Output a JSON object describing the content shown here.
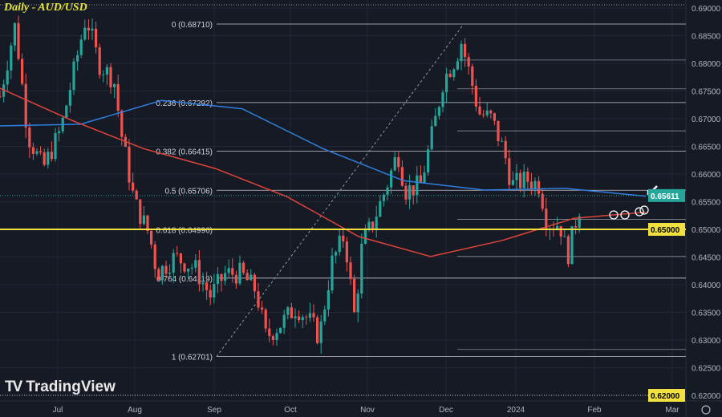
{
  "header": {
    "title": "Daily - AUD/USD"
  },
  "branding": {
    "logo_text": "TradingView",
    "logo_mark": "TV"
  },
  "settings_icon": "gear-icon",
  "colors": {
    "background": "#161a25",
    "up": "#26a69a",
    "down": "#ef5350",
    "ma_fast": "#2f7fe0",
    "ma_slow": "#e0443a",
    "level": "#f0e040",
    "current": "#26a69a"
  },
  "chart_data": {
    "type": "candlestick",
    "title": "Daily - AUD/USD",
    "ylim": [
      0.62,
      0.69
    ],
    "y_ticks": [
      "0.62000",
      "0.62500",
      "0.63000",
      "0.63500",
      "0.64000",
      "0.64500",
      "0.65000",
      "0.65500",
      "0.66000",
      "0.66500",
      "0.67000",
      "0.67500",
      "0.68000",
      "0.68500",
      "0.69000"
    ],
    "x_ticks": [
      "Jul",
      "Aug",
      "Sep",
      "Oct",
      "Nov",
      "Dec",
      "2024",
      "Feb",
      "Mar"
    ],
    "grid": true,
    "closes": [
      [
        "2023-06-09",
        0.674
      ],
      [
        "2023-06-13",
        0.6828
      ],
      [
        "2023-06-15",
        0.687
      ],
      [
        "2023-06-20",
        0.667
      ],
      [
        "2023-06-26",
        0.661
      ],
      [
        "2023-07-03",
        0.668
      ],
      [
        "2023-07-13",
        0.6885
      ],
      [
        "2023-07-18",
        0.68
      ],
      [
        "2023-07-24",
        0.677
      ],
      [
        "2023-07-27",
        0.667
      ],
      [
        "2023-08-01",
        0.655
      ],
      [
        "2023-08-07",
        0.649
      ],
      [
        "2023-08-10",
        0.642
      ],
      [
        "2023-08-17",
        0.645
      ],
      [
        "2023-08-25",
        0.643
      ],
      [
        "2023-08-31",
        0.638
      ],
      [
        "2023-09-06",
        0.642
      ],
      [
        "2023-09-12",
        0.642
      ],
      [
        "2023-09-18",
        0.639
      ],
      [
        "2023-09-22",
        0.6305
      ],
      [
        "2023-09-28",
        0.633
      ],
      [
        "2023-10-04",
        0.636
      ],
      [
        "2023-10-10",
        0.633
      ],
      [
        "2023-10-13",
        0.6305
      ],
      [
        "2023-10-18",
        0.644
      ],
      [
        "2023-10-23",
        0.649
      ],
      [
        "2023-10-27",
        0.634
      ],
      [
        "2023-10-30",
        0.6475
      ],
      [
        "2023-11-03",
        0.651
      ],
      [
        "2023-11-08",
        0.657
      ],
      [
        "2023-11-13",
        0.664
      ],
      [
        "2023-11-16",
        0.657
      ],
      [
        "2023-11-22",
        0.658
      ],
      [
        "2023-11-28",
        0.67
      ],
      [
        "2023-12-01",
        0.677
      ],
      [
        "2023-12-06",
        0.681
      ],
      [
        "2023-12-08",
        0.684
      ],
      [
        "2023-12-12",
        0.677
      ],
      [
        "2023-12-15",
        0.671
      ],
      [
        "2023-12-20",
        0.67
      ],
      [
        "2023-12-25",
        0.664
      ],
      [
        "2023-12-28",
        0.658
      ],
      [
        "2024-01-03",
        0.659
      ],
      [
        "2024-01-08",
        0.658
      ],
      [
        "2024-01-11",
        0.651
      ],
      [
        "2024-01-16",
        0.651
      ],
      [
        "2024-01-19",
        0.645
      ],
      [
        "2024-01-22",
        0.651
      ],
      [
        "2024-01-25",
        0.65611
      ]
    ],
    "moving_averages": [
      {
        "color": "#2f7fe0",
        "values": [
          0.6687,
          0.669,
          0.6733,
          0.6718,
          0.6646,
          0.6588,
          0.6571,
          0.6574,
          0.656
        ]
      },
      {
        "color": "#e0443a",
        "values": [
          0.6755,
          0.6697,
          0.6646,
          0.661,
          0.6559,
          0.6487,
          0.6451,
          0.648,
          0.652,
          0.6531
        ]
      }
    ],
    "fib_levels": [
      {
        "label": "0 (0.68710)",
        "value": 0.6871
      },
      {
        "label": "0.236 (0.67292)",
        "value": 0.67292
      },
      {
        "label": "0.382 (0.66415)",
        "value": 0.66415
      },
      {
        "label": "0.5 (0.65706)",
        "value": 0.65706
      },
      {
        "label": "0.618 (0.64996)",
        "value": 0.64996
      },
      {
        "label": "0.764 (0.64119)",
        "value": 0.64119
      },
      {
        "label": "1 (0.62701)",
        "value": 0.62701
      }
    ],
    "horizontal_lines": [
      0.6806,
      0.6754,
      0.6678,
      0.6518,
      0.6451,
      0.6283
    ],
    "key_level": {
      "value": 0.65,
      "label": "0.65000"
    },
    "lower_marker": {
      "value": 0.62,
      "label": "0.62000"
    },
    "current_price": {
      "value": 0.65611,
      "label": "0.65611"
    }
  }
}
